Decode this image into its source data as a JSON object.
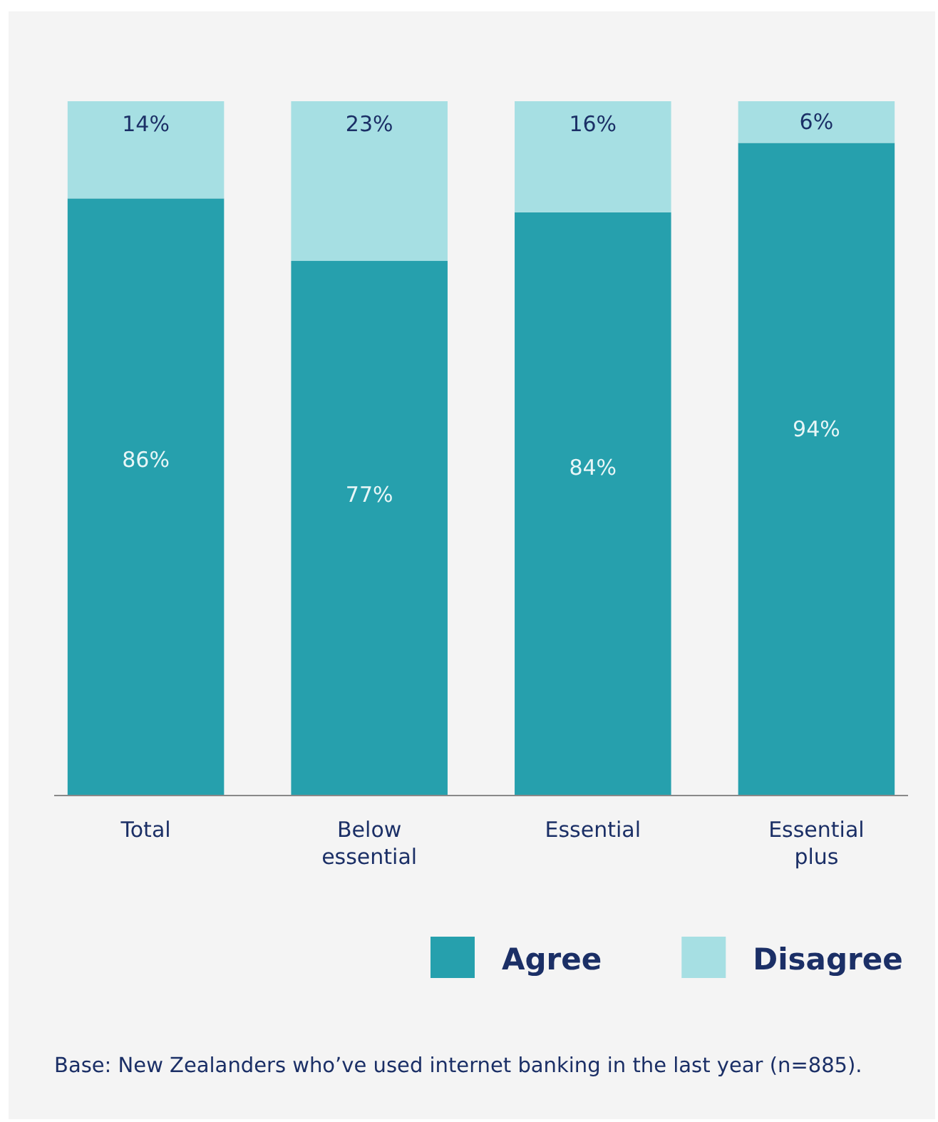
{
  "chart_data": {
    "type": "bar",
    "stacked": true,
    "categories": [
      "Total",
      "Below essential",
      "Essential",
      "Essential plus"
    ],
    "series": [
      {
        "name": "Agree",
        "color": "#26a0ad",
        "values": [
          86,
          77,
          84,
          94
        ],
        "value_labels": [
          "86%",
          "77%",
          "84%",
          "94%"
        ]
      },
      {
        "name": "Disagree",
        "color": "#a6dfe3",
        "values": [
          14,
          23,
          16,
          6
        ],
        "value_labels": [
          "14%",
          "23%",
          "16%",
          "6%"
        ]
      }
    ],
    "legend": "bottom right",
    "annotations": [
      "Base: New Zealanders who’ve used internet banking in the last year (n=885)."
    ]
  }
}
